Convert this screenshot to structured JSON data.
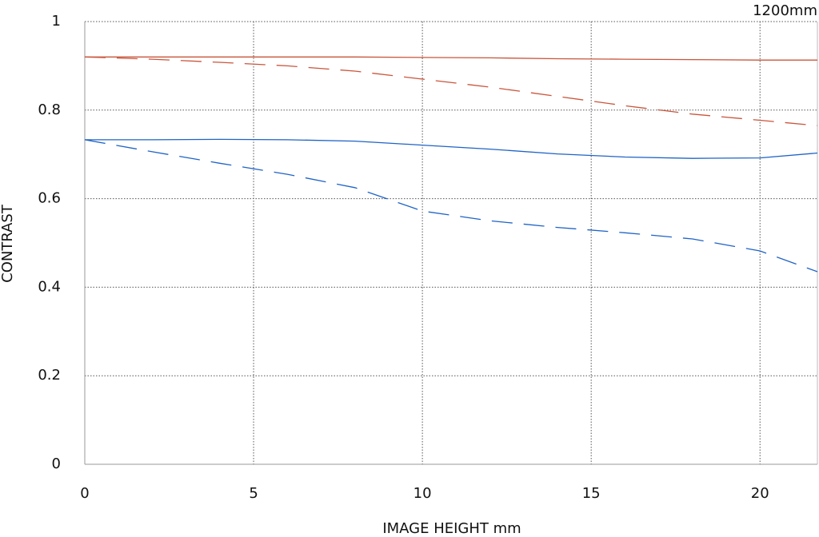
{
  "chart_data": {
    "type": "line",
    "annotation": "1200mm",
    "xlabel": "IMAGE HEIGHT  mm",
    "ylabel": "CONTRAST",
    "x": [
      0,
      2,
      4,
      6,
      8,
      10,
      12,
      14,
      16,
      18,
      20,
      21.7
    ],
    "series": [
      {
        "color": "#c9553b",
        "dashed": false,
        "values": [
          0.92,
          0.92,
          0.92,
          0.92,
          0.92,
          0.919,
          0.918,
          0.916,
          0.915,
          0.914,
          0.913,
          0.913
        ]
      },
      {
        "color": "#c9553b",
        "dashed": true,
        "values": [
          0.92,
          0.915,
          0.908,
          0.9,
          0.888,
          0.87,
          0.852,
          0.831,
          0.81,
          0.791,
          0.777,
          0.765
        ]
      },
      {
        "color": "#1f63c6",
        "dashed": false,
        "values": [
          0.733,
          0.733,
          0.734,
          0.733,
          0.73,
          0.721,
          0.712,
          0.701,
          0.694,
          0.691,
          0.692,
          0.703
        ]
      },
      {
        "color": "#1f63c6",
        "dashed": true,
        "values": [
          0.733,
          0.706,
          0.68,
          0.655,
          0.625,
          0.572,
          0.55,
          0.535,
          0.523,
          0.509,
          0.482,
          0.435
        ]
      }
    ],
    "xlim": [
      0,
      21.7
    ],
    "ylim": [
      0,
      1
    ],
    "xticks": [
      0,
      5,
      10,
      15,
      20
    ],
    "yticks": [
      0,
      0.2,
      0.4,
      0.6,
      0.8,
      1
    ],
    "grid": true
  }
}
